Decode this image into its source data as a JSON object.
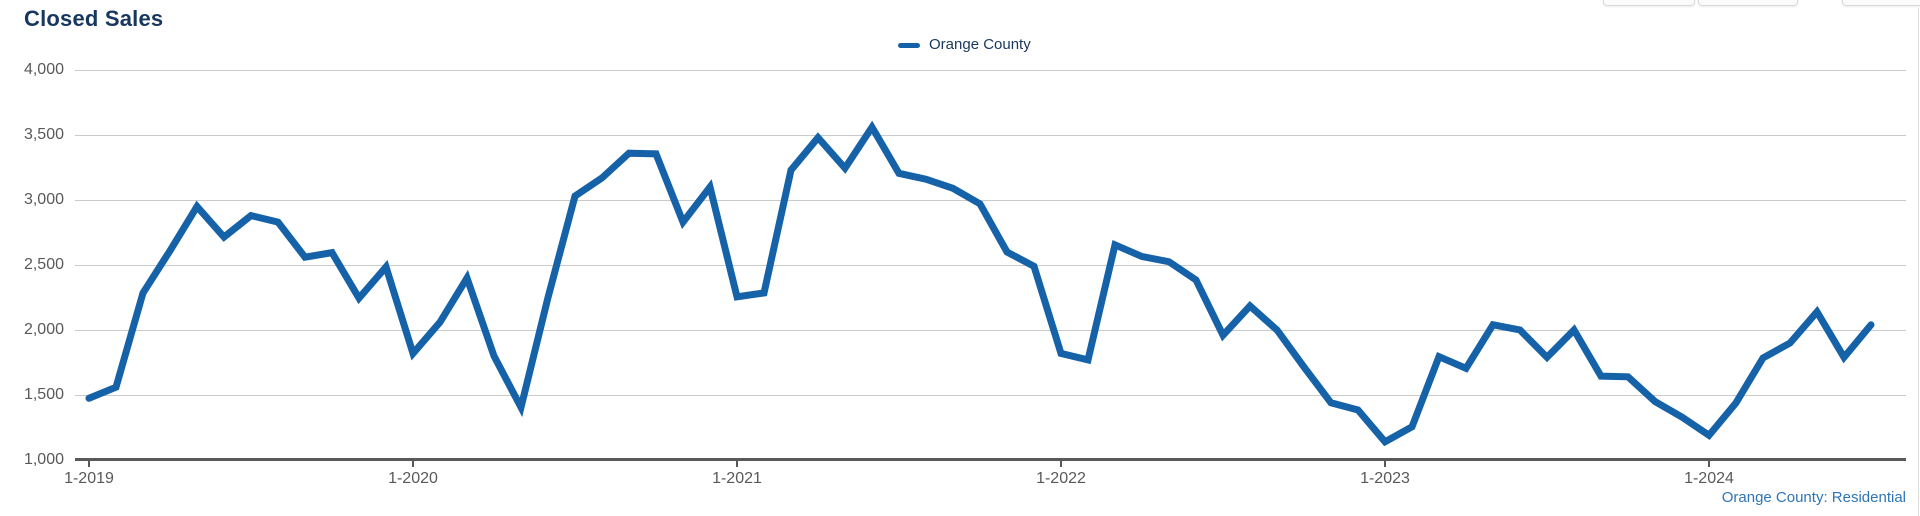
{
  "page": {
    "title": "Closed Sales",
    "footnote": "Orange County: Residential"
  },
  "chart_data": {
    "type": "line",
    "title": "Closed Sales",
    "legend_position": "top-center",
    "grid": "horizontal",
    "ylim": [
      1000,
      4000
    ],
    "y_tick_labels": [
      "4,000",
      "3,500",
      "3,000",
      "2,500",
      "2,000",
      "1,500",
      "1,000"
    ],
    "x_tick_labels": [
      "1-2019",
      "1-2020",
      "1-2021",
      "1-2022",
      "1-2023",
      "1-2024"
    ],
    "x": [
      "1-2019",
      "2-2019",
      "3-2019",
      "4-2019",
      "5-2019",
      "6-2019",
      "7-2019",
      "8-2019",
      "9-2019",
      "10-2019",
      "11-2019",
      "12-2019",
      "1-2020",
      "2-2020",
      "3-2020",
      "4-2020",
      "5-2020",
      "6-2020",
      "7-2020",
      "8-2020",
      "9-2020",
      "10-2020",
      "11-2020",
      "12-2020",
      "1-2021",
      "2-2021",
      "3-2021",
      "4-2021",
      "5-2021",
      "6-2021",
      "7-2021",
      "8-2021",
      "9-2021",
      "10-2021",
      "11-2021",
      "12-2021",
      "1-2022",
      "2-2022",
      "3-2022",
      "4-2022",
      "5-2022",
      "6-2022",
      "7-2022",
      "8-2022",
      "9-2022",
      "10-2022",
      "11-2022",
      "12-2022",
      "1-2023",
      "2-2023",
      "3-2023",
      "4-2023",
      "5-2023",
      "6-2023",
      "7-2023",
      "8-2023",
      "9-2023",
      "10-2023",
      "11-2023",
      "12-2023",
      "1-2024",
      "2-2024",
      "3-2024",
      "4-2024",
      "5-2024",
      "6-2024",
      "7-2024"
    ],
    "series": [
      {
        "name": "Orange County",
        "color": "#1562a8",
        "values": [
          1475,
          1560,
          2285,
          2610,
          2950,
          2715,
          2880,
          2830,
          2560,
          2595,
          2245,
          2485,
          1820,
          2060,
          2400,
          1800,
          1405,
          2250,
          3030,
          3170,
          3360,
          3355,
          2830,
          3100,
          2255,
          2285,
          3230,
          3480,
          3245,
          3560,
          3205,
          3160,
          3090,
          2970,
          2600,
          2490,
          1820,
          1770,
          2655,
          2565,
          2525,
          2385,
          1960,
          2185,
          2000,
          1715,
          1440,
          1385,
          1140,
          1255,
          1795,
          1705,
          2040,
          2000,
          1790,
          2000,
          1645,
          1640,
          1450,
          1330,
          1190,
          1440,
          1785,
          1900,
          2140,
          1790,
          2040
        ]
      }
    ]
  }
}
